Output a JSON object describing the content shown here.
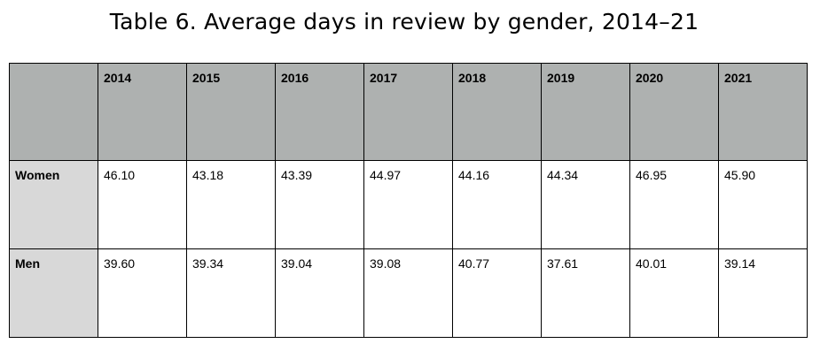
{
  "title": "Table 6. Average days in review by gender, 2014–21",
  "table": {
    "corner": "",
    "headers": [
      "2014",
      "2015",
      "2016",
      "2017",
      "2018",
      "2019",
      "2020",
      "2021"
    ],
    "rows": [
      {
        "label": "Women",
        "values": [
          "46.10",
          "43.18",
          "43.39",
          "44.97",
          "44.16",
          "44.34",
          "46.95",
          "45.90"
        ]
      },
      {
        "label": "Men",
        "values": [
          "39.60",
          "39.34",
          "39.04",
          "39.08",
          "40.77",
          "37.61",
          "40.01",
          "39.14"
        ]
      }
    ]
  },
  "colors": {
    "header_fill": "#aeb1b0",
    "row_label_fill": "#d8d8d8",
    "border": "#000000"
  }
}
